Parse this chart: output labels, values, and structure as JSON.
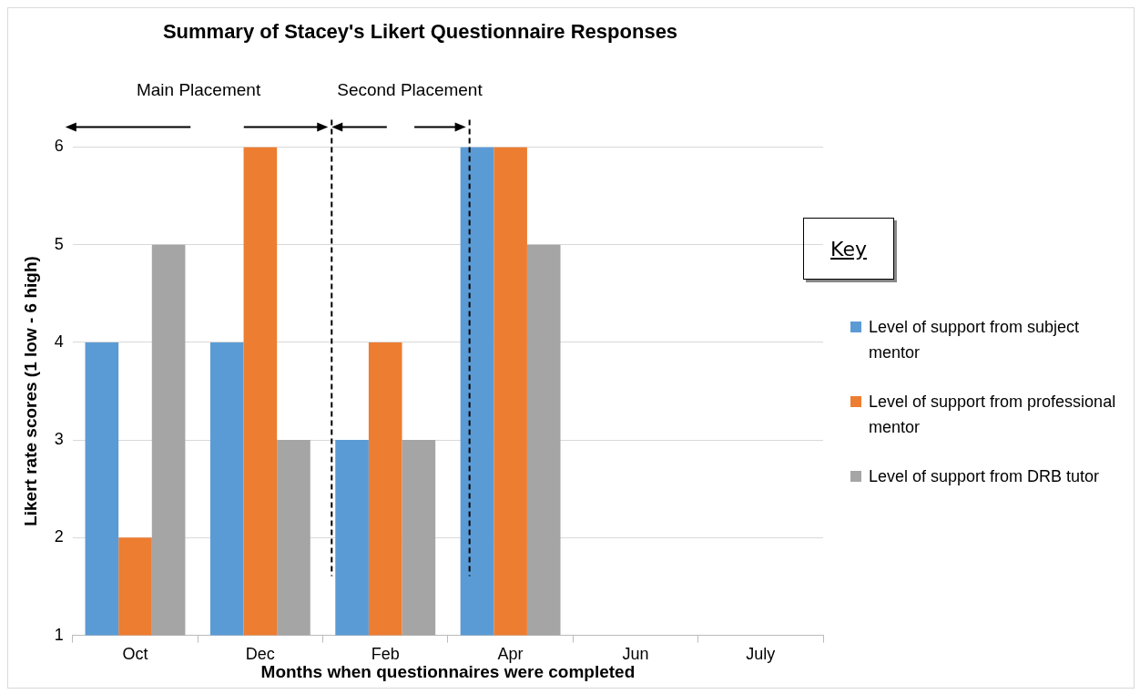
{
  "chart_data": {
    "type": "bar",
    "title": "Summary of Stacey's Likert Questionnaire Responses",
    "xlabel": "Months when questionnaires were completed",
    "ylabel": "Likert rate scores (1 low - 6 high)",
    "legend_title": "Key",
    "categories": [
      "Oct",
      "Dec",
      "Feb",
      "Apr",
      "Jun",
      "July"
    ],
    "series": [
      {
        "name": "Level of support from subject mentor",
        "color": "#5b9bd5",
        "values": [
          4,
          4,
          3,
          6,
          null,
          null
        ]
      },
      {
        "name": "Level of support from professional mentor",
        "color": "#ed7d31",
        "values": [
          2,
          6,
          4,
          6,
          null,
          null
        ]
      },
      {
        "name": "Level of support from DRB tutor",
        "color": "#a5a5a5",
        "values": [
          5,
          3,
          3,
          5,
          null,
          null
        ]
      }
    ],
    "ylim": [
      1,
      6
    ],
    "yticks": [
      1,
      2,
      3,
      4,
      5,
      6
    ],
    "grid": "y",
    "legend": "right",
    "annotations": [
      "Main Placement",
      "Second Placement"
    ],
    "ref_lines": [
      {
        "axis": "x",
        "value": "Feb",
        "line_style": "dashed"
      },
      {
        "axis": "x",
        "value": "Apr",
        "line_style": "dashed"
      }
    ]
  }
}
